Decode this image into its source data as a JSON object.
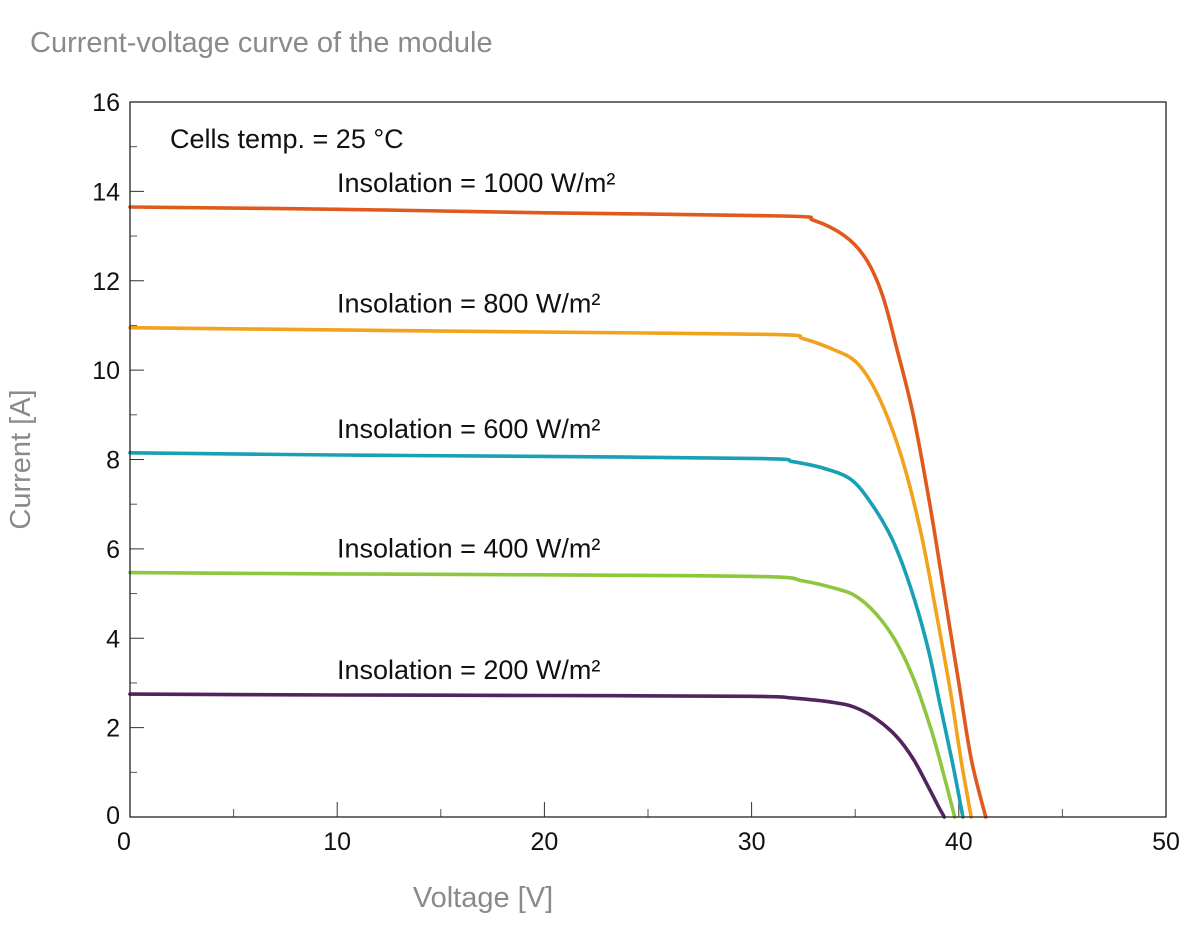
{
  "chart_data": {
    "type": "line",
    "title": "Current-voltage curve of the module",
    "xlabel": "Voltage [V]",
    "ylabel": "Current [A]",
    "xlim": [
      0,
      50
    ],
    "ylim": [
      0,
      16
    ],
    "x_ticks": [
      0,
      10,
      20,
      30,
      40,
      50
    ],
    "y_ticks": [
      0,
      2,
      4,
      6,
      8,
      10,
      12,
      14,
      16
    ],
    "grid": false,
    "annotations": [
      "Cells temp. = 25 °C"
    ],
    "series": [
      {
        "name": "Insolation = 1000 W/m²",
        "color": "#e05a1e",
        "points": [
          [
            0,
            13.65
          ],
          [
            10,
            13.6
          ],
          [
            20,
            13.52
          ],
          [
            31.5,
            13.45
          ],
          [
            33,
            13.35
          ],
          [
            34.5,
            13.0
          ],
          [
            35.5,
            12.5
          ],
          [
            36.3,
            11.7
          ],
          [
            37,
            10.5
          ],
          [
            37.8,
            9.0
          ],
          [
            38.6,
            7.0
          ],
          [
            39.3,
            5.0
          ],
          [
            40,
            3.0
          ],
          [
            40.6,
            1.3
          ],
          [
            41.3,
            0
          ]
        ]
      },
      {
        "name": "Insolation = 800 W/m²",
        "color": "#f2a21c",
        "points": [
          [
            0,
            10.95
          ],
          [
            10,
            10.9
          ],
          [
            20,
            10.85
          ],
          [
            31,
            10.8
          ],
          [
            32.5,
            10.7
          ],
          [
            34,
            10.45
          ],
          [
            35,
            10.2
          ],
          [
            35.8,
            9.7
          ],
          [
            36.6,
            8.9
          ],
          [
            37.4,
            7.8
          ],
          [
            38.2,
            6.3
          ],
          [
            38.9,
            4.6
          ],
          [
            39.6,
            2.8
          ],
          [
            40.1,
            1.3
          ],
          [
            40.6,
            0
          ]
        ]
      },
      {
        "name": "Insolation = 600 W/m²",
        "color": "#1aa0b4",
        "points": [
          [
            0,
            8.15
          ],
          [
            10,
            8.1
          ],
          [
            20,
            8.07
          ],
          [
            30.5,
            8.02
          ],
          [
            32,
            7.95
          ],
          [
            33.5,
            7.8
          ],
          [
            34.8,
            7.55
          ],
          [
            35.8,
            7.0
          ],
          [
            36.8,
            6.2
          ],
          [
            37.7,
            5.1
          ],
          [
            38.5,
            3.8
          ],
          [
            39.1,
            2.5
          ],
          [
            39.7,
            1.2
          ],
          [
            40.2,
            0
          ]
        ]
      },
      {
        "name": "Insolation = 400 W/m²",
        "color": "#8dc63f",
        "points": [
          [
            0,
            5.47
          ],
          [
            10,
            5.44
          ],
          [
            20,
            5.42
          ],
          [
            30.5,
            5.38
          ],
          [
            32.5,
            5.28
          ],
          [
            34,
            5.12
          ],
          [
            35,
            4.95
          ],
          [
            36,
            4.55
          ],
          [
            37,
            3.9
          ],
          [
            37.9,
            3.0
          ],
          [
            38.7,
            1.9
          ],
          [
            39.3,
            0.9
          ],
          [
            39.8,
            0
          ]
        ]
      },
      {
        "name": "Insolation = 200 W/m²",
        "color": "#52245e",
        "points": [
          [
            0,
            2.75
          ],
          [
            10,
            2.73
          ],
          [
            20,
            2.72
          ],
          [
            30,
            2.7
          ],
          [
            32,
            2.66
          ],
          [
            34,
            2.56
          ],
          [
            35,
            2.45
          ],
          [
            36,
            2.2
          ],
          [
            37,
            1.8
          ],
          [
            37.8,
            1.3
          ],
          [
            38.5,
            0.7
          ],
          [
            39,
            0.25
          ],
          [
            39.3,
            0
          ]
        ]
      }
    ]
  }
}
